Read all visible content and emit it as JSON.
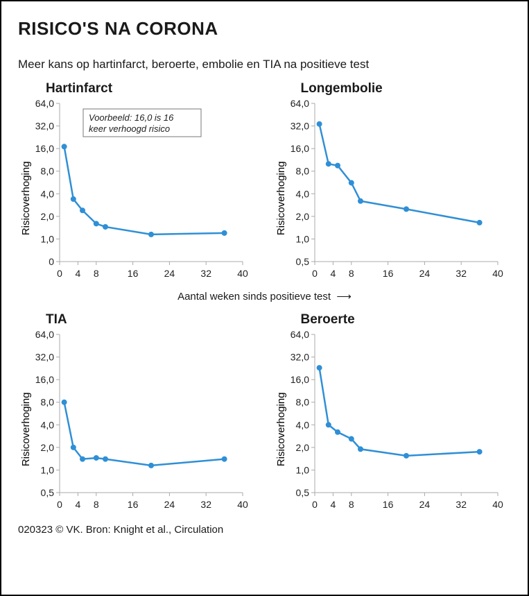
{
  "title": "RISICO'S NA CORONA",
  "subtitle": "Meer kans op hartinfarct, beroerte, embolie en TIA na positieve test",
  "x_axis": {
    "caption": "Aantal weken sinds positieve test",
    "arrow": "⟶",
    "min": 0,
    "max": 40,
    "ticks": [
      0,
      4,
      8,
      16,
      24,
      32,
      40
    ]
  },
  "y_label": "Risicoverhoging",
  "note_box": {
    "text_line1": "Voorbeeld: 16,0 is 16",
    "text_line2": "keer verhoogd risico"
  },
  "series_color": "#2f8fd6",
  "panels": [
    {
      "key": "hartinfarct",
      "title": "Hartinfarct",
      "y_ticks": [
        0,
        1.0,
        2.0,
        4.0,
        8.0,
        16.0,
        32.0,
        64.0
      ],
      "y_tick_labels": [
        "0",
        "1,0",
        "2,0",
        "4,0",
        "8,0",
        "16,0",
        "32,0",
        "64,0"
      ],
      "has_note": true,
      "data": [
        {
          "x": 1,
          "y": 17.0
        },
        {
          "x": 3,
          "y": 3.4
        },
        {
          "x": 5,
          "y": 2.4
        },
        {
          "x": 8,
          "y": 1.6
        },
        {
          "x": 10,
          "y": 1.45
        },
        {
          "x": 20,
          "y": 1.15
        },
        {
          "x": 36,
          "y": 1.2
        }
      ]
    },
    {
      "key": "longembolie",
      "title": "Longembolie",
      "y_ticks": [
        0.5,
        1.0,
        2.0,
        4.0,
        8.0,
        16.0,
        32.0,
        64.0
      ],
      "y_tick_labels": [
        "0,5",
        "1,0",
        "2,0",
        "4,0",
        "8,0",
        "16,0",
        "32,0",
        "64,0"
      ],
      "has_note": false,
      "data": [
        {
          "x": 1,
          "y": 34.0
        },
        {
          "x": 3,
          "y": 10.0
        },
        {
          "x": 5,
          "y": 9.5
        },
        {
          "x": 8,
          "y": 5.6
        },
        {
          "x": 10,
          "y": 3.2
        },
        {
          "x": 20,
          "y": 2.5
        },
        {
          "x": 36,
          "y": 1.65
        }
      ]
    },
    {
      "key": "tia",
      "title": "TIA",
      "y_ticks": [
        0.5,
        1.0,
        2.0,
        4.0,
        8.0,
        16.0,
        32.0,
        64.0
      ],
      "y_tick_labels": [
        "0,5",
        "1,0",
        "2,0",
        "4,0",
        "8,0",
        "16,0",
        "32,0",
        "64,0"
      ],
      "has_note": false,
      "data": [
        {
          "x": 1,
          "y": 8.0
        },
        {
          "x": 3,
          "y": 2.0
        },
        {
          "x": 5,
          "y": 1.4
        },
        {
          "x": 8,
          "y": 1.45
        },
        {
          "x": 10,
          "y": 1.4
        },
        {
          "x": 20,
          "y": 1.15
        },
        {
          "x": 36,
          "y": 1.4
        }
      ]
    },
    {
      "key": "beroerte",
      "title": "Beroerte",
      "y_ticks": [
        0.5,
        1.0,
        2.0,
        4.0,
        8.0,
        16.0,
        32.0,
        64.0
      ],
      "y_tick_labels": [
        "0,5",
        "1,0",
        "2,0",
        "4,0",
        "8,0",
        "16,0",
        "32,0",
        "64,0"
      ],
      "has_note": false,
      "data": [
        {
          "x": 1,
          "y": 23.0
        },
        {
          "x": 3,
          "y": 4.0
        },
        {
          "x": 5,
          "y": 3.2
        },
        {
          "x": 8,
          "y": 2.6
        },
        {
          "x": 10,
          "y": 1.9
        },
        {
          "x": 20,
          "y": 1.55
        },
        {
          "x": 36,
          "y": 1.75
        }
      ]
    }
  ],
  "footer": "020323 © VK. Bron: Knight et al., Circulation"
}
